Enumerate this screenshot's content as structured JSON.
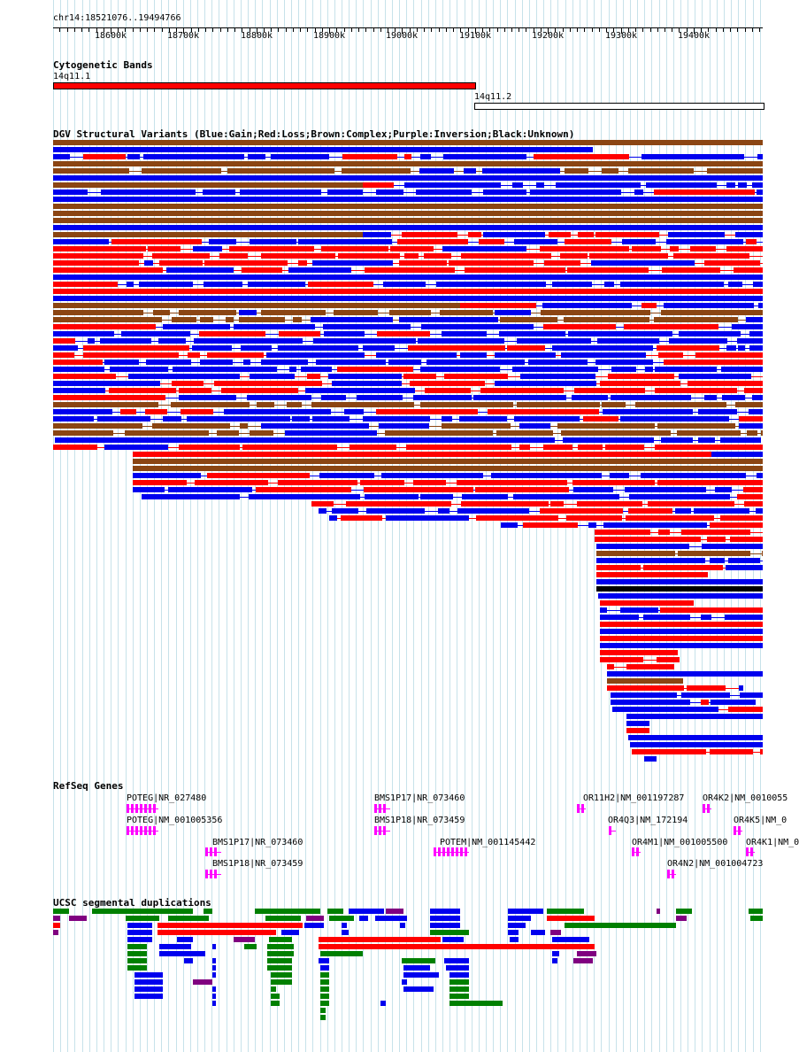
{
  "location": "chr14:18521076..19494766",
  "ruler": {
    "start": 18521076,
    "end": 19494766,
    "ticks": [
      {
        "pos": 18600000,
        "label": "18600k"
      },
      {
        "pos": 18700000,
        "label": "18700k"
      },
      {
        "pos": 18800000,
        "label": "18800k"
      },
      {
        "pos": 18900000,
        "label": "18900k"
      },
      {
        "pos": 19000000,
        "label": "19000k"
      },
      {
        "pos": 19100000,
        "label": "19100k"
      },
      {
        "pos": 19200000,
        "label": "19200k"
      },
      {
        "pos": 19300000,
        "label": "19300k"
      },
      {
        "pos": 19400000,
        "label": "19400k"
      }
    ]
  },
  "tracks": {
    "cyto": {
      "title": "Cytogenetic Bands",
      "bands": [
        {
          "name": "14q11.1",
          "start": 18521076,
          "end": 19100000,
          "color": "#ff0000"
        },
        {
          "name": "14q11.2",
          "start": 19100000,
          "end": 19494766,
          "color": "#ffffff"
        }
      ]
    },
    "dgv": {
      "title": "DGV Structural Variants (Blue:Gain;Red:Loss;Brown:Complex;Purple:Inversion;Black:Unknown)",
      "colors": {
        "gain": "#0000ee",
        "loss": "#ff0000",
        "complex": "#8b4513",
        "inversion": "#800080",
        "unknown": "#000000"
      }
    },
    "refseq": {
      "title": "RefSeq Genes",
      "genes": [
        {
          "label": "POTEG|NR_027480",
          "color": "#ff00ff"
        },
        {
          "label": "POTEG|NM_001005356",
          "color": "#ff00ff"
        },
        {
          "label": "BMS1P17|NR_073460",
          "color": "#ff00ff"
        },
        {
          "label": "BMS1P18|NR_073459",
          "color": "#ff00ff"
        },
        {
          "label": "BMS1P17|NR_073460",
          "color": "#ff00ff"
        },
        {
          "label": "BMS1P18|NR_073459",
          "color": "#ff00ff"
        },
        {
          "label": "POTEM|NM_001145442",
          "color": "#ff00ff"
        },
        {
          "label": "OR11H2|NM_001197287",
          "color": "#ff00ff"
        },
        {
          "label": "OR4Q3|NM_172194",
          "color": "#ff00ff"
        },
        {
          "label": "OR4M1|NM_001005500",
          "color": "#ff00ff"
        },
        {
          "label": "OR4N2|NM_001004723",
          "color": "#ff00ff"
        },
        {
          "label": "OR4K2|NM_0010055",
          "color": "#ff00ff"
        },
        {
          "label": "OR4K5|NM_0",
          "color": "#ff00ff"
        },
        {
          "label": "OR4K1|NM_0",
          "color": "#ff00ff"
        }
      ]
    },
    "segdup": {
      "title": "UCSC segmental duplications",
      "colors": {
        "green": "#008000",
        "red": "#ff0000",
        "blue": "#0000ee",
        "purple": "#800080"
      }
    }
  }
}
